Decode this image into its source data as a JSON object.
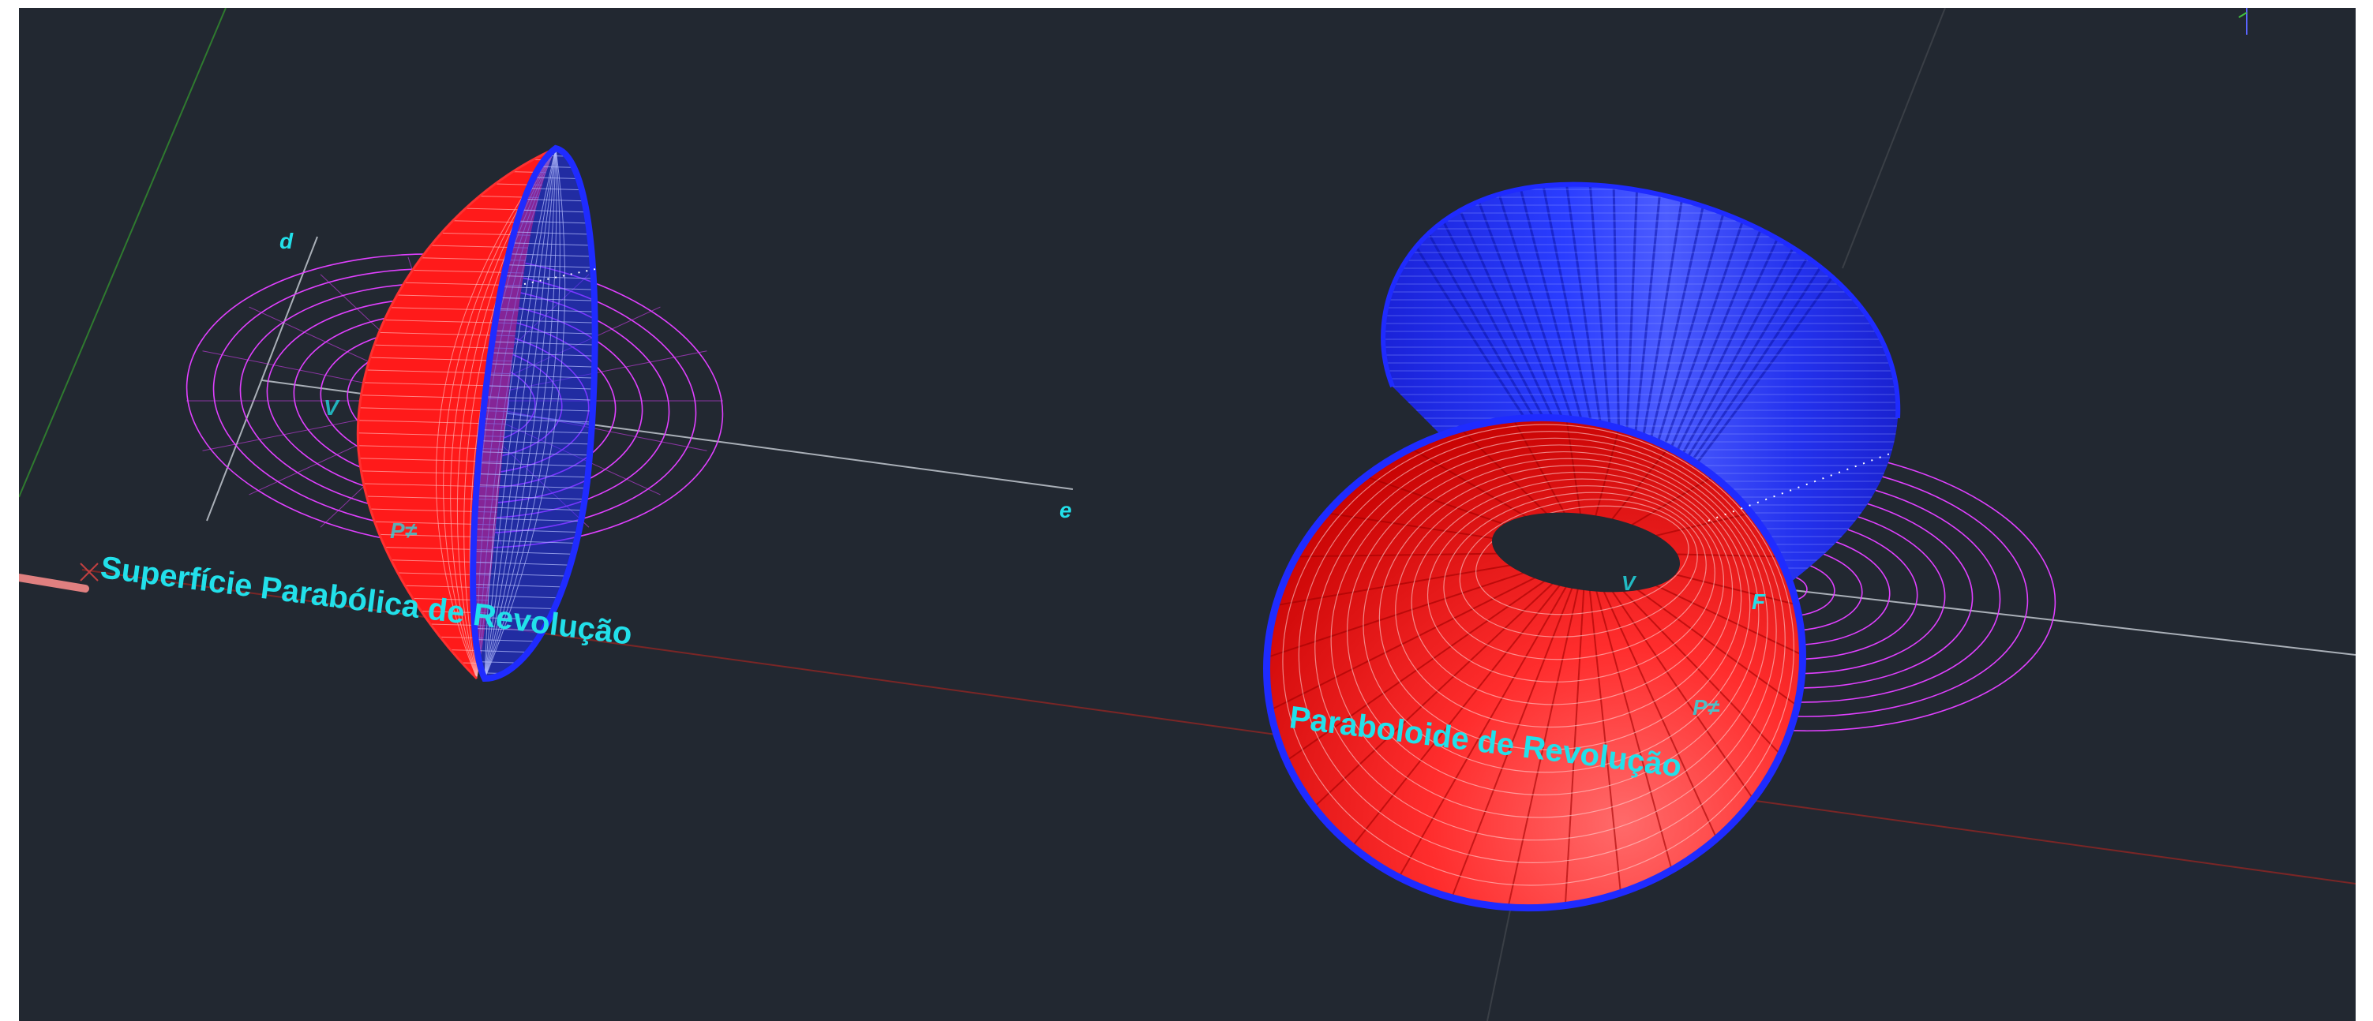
{
  "viewport": {
    "background": "#222831",
    "frame_color": "#ffffff"
  },
  "colors": {
    "red_surface": "#ff1a1a",
    "blue_surface": "#1f2bff",
    "magenta_grid": "#e040ff",
    "label_cyan": "#22e0ea",
    "axis_gray": "#aab0b8",
    "axis_red": "#7a2626",
    "axis_green": "#2f7a2f"
  },
  "left_object": {
    "title": "Superfície Parabólica de Revolução",
    "axis_d_label": "d",
    "axis_e_label": "e",
    "vertex_label": "V",
    "plane_label": "P≠"
  },
  "right_object": {
    "title": "Paraboloide de Revolução",
    "vertex_label": "V",
    "focus_label": "F",
    "plane_label": "P≠"
  },
  "icons": {
    "ucs_marker": "ucs-origin-x-icon",
    "view_cube_edge": "view-axis-icon"
  }
}
